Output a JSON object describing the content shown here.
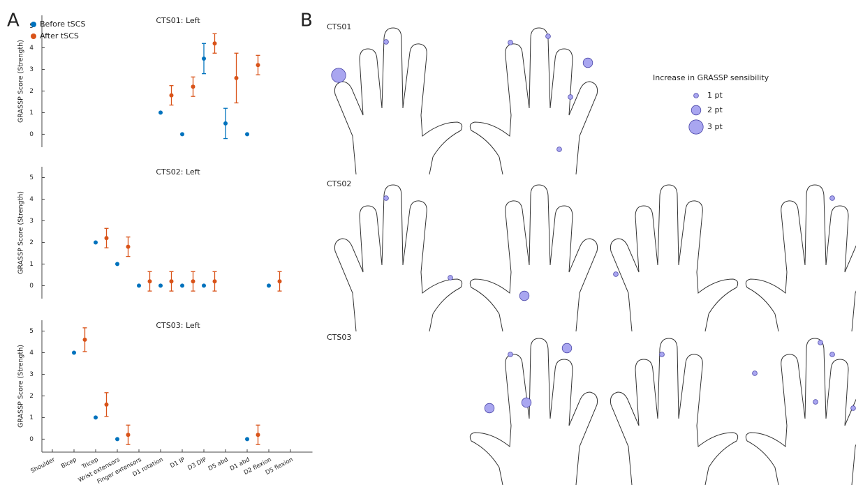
{
  "panel_labels": [
    "A",
    "B"
  ],
  "chart_data": [
    {
      "type": "dotplot",
      "title": "CTS01: Left",
      "ylabel": "GRASSP Score (Strength)",
      "ylim": [
        -0.6,
        5.5
      ],
      "yticks": [
        0,
        1,
        2,
        3,
        4,
        5
      ],
      "legend": "upper left",
      "series": [
        {
          "name": "Before tSCS",
          "color": "#0072bd",
          "values": [
            null,
            null,
            null,
            null,
            null,
            1,
            0,
            3.5,
            0.5,
            0,
            null,
            null
          ],
          "errors": [
            null,
            null,
            null,
            null,
            null,
            null,
            null,
            0.7,
            0.7,
            null,
            null,
            null
          ]
        },
        {
          "name": "After tSCS",
          "color": "#d95319",
          "values": [
            null,
            null,
            null,
            null,
            null,
            1.8,
            2.2,
            4.2,
            2.6,
            3.2,
            null,
            null
          ],
          "errors": [
            null,
            null,
            null,
            null,
            null,
            0.45,
            0.45,
            0.45,
            1.15,
            0.45,
            null,
            null
          ]
        }
      ]
    },
    {
      "type": "dotplot",
      "title": "CTS02: Left",
      "ylabel": "GRASSP Score (Strength)",
      "ylim": [
        -0.6,
        5.5
      ],
      "yticks": [
        0,
        1,
        2,
        3,
        4,
        5
      ],
      "series": [
        {
          "color": "#0072bd",
          "values": [
            null,
            null,
            2,
            1,
            0,
            0,
            0,
            0,
            null,
            null,
            0,
            null
          ]
        },
        {
          "color": "#d95319",
          "values": [
            null,
            null,
            2.2,
            1.8,
            0.2,
            0.2,
            0.2,
            0.2,
            null,
            null,
            0.2,
            null
          ],
          "errors": [
            null,
            null,
            0.45,
            0.45,
            0.45,
            0.45,
            0.45,
            0.45,
            null,
            null,
            0.45,
            null
          ]
        }
      ]
    },
    {
      "type": "dotplot",
      "title": "CTS03: Left",
      "ylabel": "GRASSP Score (Strength)",
      "ylim": [
        -0.6,
        5.5
      ],
      "yticks": [
        0,
        1,
        2,
        3,
        4,
        5
      ],
      "categories": [
        "Shoulder",
        "Bicep",
        "Tricep",
        "Wrist extensors",
        "Finger extensors",
        "D1 rotation",
        "D1 IP",
        "D3 DIP",
        "D5 abd",
        "D1 abd",
        "D2 flexion",
        "D5 flexion"
      ],
      "series": [
        {
          "color": "#0072bd",
          "values": [
            null,
            4,
            1,
            0,
            null,
            null,
            null,
            null,
            null,
            0,
            null,
            null
          ]
        },
        {
          "color": "#d95319",
          "values": [
            null,
            4.6,
            1.6,
            0.2,
            null,
            null,
            null,
            null,
            null,
            0.2,
            null,
            null
          ],
          "errors": [
            null,
            0.55,
            0.55,
            0.45,
            null,
            null,
            null,
            null,
            null,
            0.45,
            null,
            null
          ]
        }
      ]
    }
  ],
  "sensibility": {
    "title": "Increase in GRASSP sensibility",
    "color": "#a9a6f0",
    "legend": {
      "values": [
        1,
        2,
        3
      ],
      "value_labels": [
        "1 pt",
        "2 pt",
        "3 pt"
      ]
    },
    "subjects": [
      {
        "label": "CTS01",
        "values": [
          1,
          3,
          1,
          1,
          2,
          1,
          1
        ]
      },
      {
        "label": "CTS02",
        "values": [
          1,
          1,
          2,
          1,
          1
        ]
      },
      {
        "label": "CTS03",
        "values": [
          1,
          2,
          2,
          2,
          1,
          1,
          1,
          1,
          1,
          1
        ]
      }
    ]
  }
}
